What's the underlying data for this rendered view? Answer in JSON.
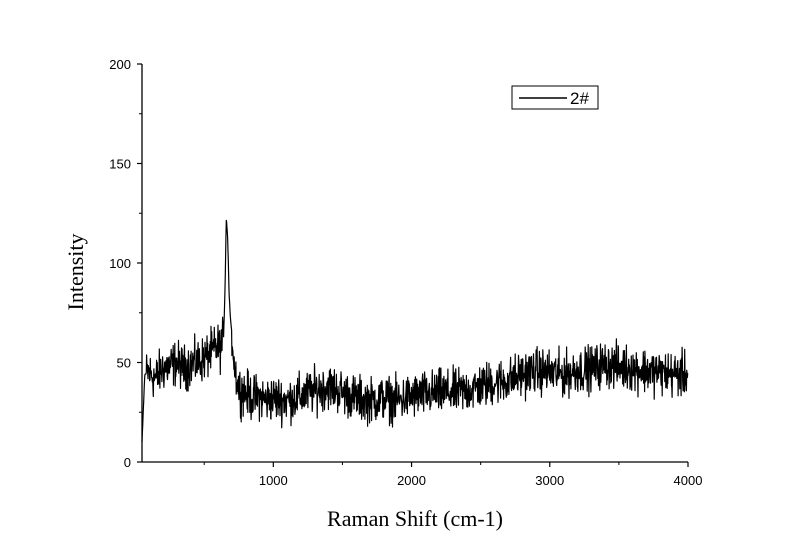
{
  "chart_data": {
    "type": "line",
    "xlabel": "Raman Shift (cm-1)",
    "ylabel": "Intensity",
    "xlim": [
      50,
      4000
    ],
    "ylim": [
      0,
      200
    ],
    "x_ticks": [
      1000,
      2000,
      3000,
      4000
    ],
    "y_ticks": [
      0,
      50,
      100,
      150,
      200
    ],
    "legend": {
      "position": "top-right",
      "entries": [
        "2#"
      ]
    },
    "grid": false,
    "series": [
      {
        "name": "2#",
        "color": "#000000",
        "x": [
          50,
          70,
          100,
          150,
          200,
          250,
          300,
          350,
          400,
          450,
          500,
          550,
          600,
          620,
          640,
          650,
          660,
          670,
          680,
          690,
          700,
          720,
          740,
          760,
          800,
          850,
          900,
          950,
          1000,
          1100,
          1200,
          1300,
          1400,
          1500,
          1600,
          1700,
          1800,
          1900,
          2000,
          2100,
          2200,
          2300,
          2400,
          2500,
          2600,
          2700,
          2800,
          2900,
          3000,
          3100,
          3200,
          3300,
          3400,
          3500,
          3600,
          3700,
          3800,
          3900,
          4000
        ],
        "values": [
          10,
          44,
          45,
          42,
          47,
          48,
          50,
          47,
          49,
          50,
          52,
          55,
          58,
          57,
          62,
          85,
          123,
          112,
          85,
          72,
          65,
          48,
          40,
          36,
          35,
          32,
          33,
          31,
          32,
          31,
          33,
          36,
          38,
          35,
          32,
          31,
          32,
          31,
          33,
          34,
          35,
          35,
          36,
          38,
          40,
          41,
          44,
          46,
          45,
          44,
          46,
          47,
          49,
          48,
          47,
          46,
          45,
          44,
          44
        ]
      }
    ]
  }
}
